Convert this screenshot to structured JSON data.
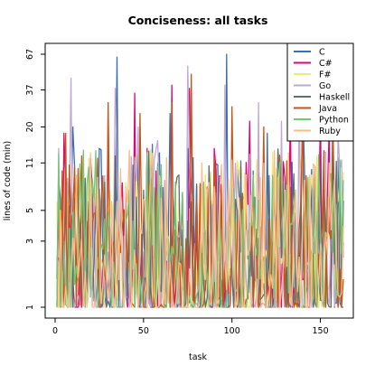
{
  "chart_data": {
    "type": "line",
    "title": "Conciseness: all tasks",
    "xlabel": "task",
    "ylabel": "lines of code (min)",
    "xlim": [
      0,
      165
    ],
    "ylim": [
      1,
      67
    ],
    "y_scale": "log",
    "x_ticks": [
      0,
      50,
      100,
      150
    ],
    "y_ticks": [
      1,
      3,
      5,
      11,
      20,
      37,
      67
    ],
    "legend_position": "top-right",
    "grid": false,
    "n_tasks": 163,
    "series": [
      {
        "name": "C",
        "color": "#3b6fb0",
        "peaks": [
          [
            35,
            64
          ],
          [
            97,
            67
          ],
          [
            140,
            30
          ],
          [
            10,
            20
          ],
          [
            55,
            15
          ],
          [
            120,
            18
          ],
          [
            78,
            12
          ],
          [
            65,
            25
          ],
          [
            25,
            14
          ],
          [
            150,
            13
          ],
          [
            160,
            12
          ]
        ]
      },
      {
        "name": "C#",
        "color": "#d90a78",
        "peaks": [
          [
            5,
            18
          ],
          [
            30,
            25
          ],
          [
            45,
            35
          ],
          [
            66,
            40
          ],
          [
            76,
            38
          ],
          [
            110,
            22
          ],
          [
            133,
            30
          ],
          [
            150,
            28
          ],
          [
            155,
            20
          ],
          [
            20,
            12
          ],
          [
            90,
            14
          ]
        ]
      },
      {
        "name": "F#",
        "color": "#f3e874",
        "peaks": [
          [
            15,
            10
          ],
          [
            40,
            8
          ],
          [
            60,
            7
          ],
          [
            85,
            9
          ],
          [
            105,
            8
          ],
          [
            125,
            10
          ],
          [
            145,
            9
          ],
          [
            20,
            5
          ],
          [
            70,
            6
          ]
        ]
      },
      {
        "name": "Go",
        "color": "#bfa7d6",
        "peaks": [
          [
            9,
            45
          ],
          [
            34,
            38
          ],
          [
            75,
            55
          ],
          [
            96,
            40
          ],
          [
            115,
            30
          ],
          [
            138,
            37
          ],
          [
            2,
            14
          ],
          [
            47,
            20
          ],
          [
            58,
            16
          ],
          [
            128,
            22
          ],
          [
            160,
            18
          ]
        ]
      },
      {
        "name": "Haskell",
        "color": "#5f6f6f",
        "peaks": [
          [
            28,
            8
          ],
          [
            50,
            7
          ],
          [
            70,
            9
          ],
          [
            102,
            6
          ],
          [
            127,
            8
          ],
          [
            152,
            7
          ],
          [
            14,
            4
          ],
          [
            88,
            5
          ]
        ]
      },
      {
        "name": "Java",
        "color": "#c65414",
        "peaks": [
          [
            6,
            18
          ],
          [
            30,
            30
          ],
          [
            48,
            25
          ],
          [
            66,
            30
          ],
          [
            77,
            48
          ],
          [
            100,
            28
          ],
          [
            118,
            20
          ],
          [
            140,
            25
          ],
          [
            157,
            22
          ],
          [
            13,
            10
          ],
          [
            90,
            12
          ]
        ]
      },
      {
        "name": "Python",
        "color": "#74c774",
        "peaks": [
          [
            22,
            6
          ],
          [
            42,
            7
          ],
          [
            68,
            8
          ],
          [
            93,
            6
          ],
          [
            112,
            9
          ],
          [
            136,
            7
          ],
          [
            158,
            8
          ],
          [
            5,
            3
          ]
        ]
      },
      {
        "name": "Ruby",
        "color": "#fbbd86",
        "peaks": [
          [
            12,
            9
          ],
          [
            37,
            10
          ],
          [
            63,
            12
          ],
          [
            83,
            11
          ],
          [
            108,
            9
          ],
          [
            132,
            13
          ],
          [
            155,
            11
          ],
          [
            3,
            5
          ],
          [
            50,
            6
          ]
        ]
      }
    ]
  }
}
